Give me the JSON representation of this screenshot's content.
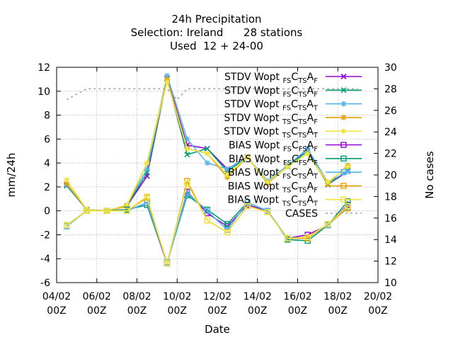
{
  "chart_data": {
    "type": "line",
    "title": [
      "24h Precipitation",
      "Selection: Ireland      28 stations",
      "Used  12 + 24-00"
    ],
    "xlabel": "Date",
    "ylabel": "mm/24h",
    "y2label": "No cases",
    "xlim": [
      0,
      16
    ],
    "ylim": [
      -6,
      12
    ],
    "y2lim": [
      10,
      30
    ],
    "xticks": [
      {
        "value": 0,
        "line1": "04/02",
        "line2": "00Z"
      },
      {
        "value": 2,
        "line1": "06/02",
        "line2": "00Z"
      },
      {
        "value": 4,
        "line1": "08/02",
        "line2": "00Z"
      },
      {
        "value": 6,
        "line1": "10/02",
        "line2": "00Z"
      },
      {
        "value": 8,
        "line1": "12/02",
        "line2": "00Z"
      },
      {
        "value": 10,
        "line1": "14/02",
        "line2": "00Z"
      },
      {
        "value": 12,
        "line1": "16/02",
        "line2": "00Z"
      },
      {
        "value": 14,
        "line1": "18/02",
        "line2": "00Z"
      },
      {
        "value": 16,
        "line1": "20/02",
        "line2": "00Z"
      }
    ],
    "yticks": [
      -6,
      -4,
      -2,
      0,
      2,
      4,
      6,
      8,
      10,
      12
    ],
    "y2ticks": [
      10,
      12,
      14,
      16,
      18,
      20,
      22,
      24,
      26,
      28,
      30
    ],
    "grid": true,
    "legend_position": "top-right",
    "x": [
      0.5,
      1.5,
      2.5,
      3.5,
      4.5,
      5.5,
      6.5,
      7.5,
      8.5,
      9.5,
      10.5,
      11.5,
      12.5,
      13.5,
      14.5
    ],
    "series": [
      {
        "label": {
          "pre": "STDV Wopt",
          "s1": "FS",
          "m": "C",
          "s2": "TS",
          "e": "A",
          "s3": "F"
        },
        "color": "#9400d3",
        "marker": "x",
        "axis": "y1",
        "values": [
          2.2,
          0.1,
          0.0,
          0.4,
          2.9,
          11.1,
          5.5,
          5.2,
          3.5,
          4.5,
          2.4,
          3.7,
          5.2,
          2.2,
          3.3
        ]
      },
      {
        "label": {
          "pre": "STDV Wopt",
          "s1": "FS",
          "m": "C",
          "s2": "TS",
          "e": "A",
          "s3": "F"
        },
        "color": "#009e73",
        "marker": "x",
        "axis": "y1",
        "values": [
          2.1,
          0.1,
          0.0,
          0.4,
          3.2,
          11.0,
          4.7,
          5.2,
          3.3,
          4.5,
          2.4,
          3.7,
          5.0,
          2.2,
          3.4
        ]
      },
      {
        "label": {
          "pre": "STDV Wopt",
          "s1": "FS",
          "m": "C",
          "s2": "TS",
          "e": "A",
          "s3": "T"
        },
        "color": "#56b4e9",
        "marker": "star",
        "axis": "y1",
        "values": [
          2.2,
          0.1,
          0.0,
          0.5,
          3.5,
          11.3,
          6.0,
          4.0,
          3.5,
          4.5,
          2.5,
          3.8,
          5.2,
          2.4,
          3.3
        ]
      },
      {
        "label": {
          "pre": "STDV Wopt",
          "s1": "TS",
          "m": "C",
          "s2": "TS",
          "e": "A",
          "s3": "F"
        },
        "color": "#e69f00",
        "marker": "star",
        "axis": "y1",
        "values": [
          2.3,
          0.1,
          0.0,
          0.4,
          4.0,
          11.0,
          5.2,
          4.8,
          2.8,
          4.5,
          2.3,
          3.7,
          4.8,
          2.3,
          3.8
        ]
      },
      {
        "label": {
          "pre": "STDV Wopt",
          "s1": "TS",
          "m": "C",
          "s2": "TS",
          "e": "A",
          "s3": "T"
        },
        "color": "#f0e442",
        "marker": "star",
        "axis": "y1",
        "values": [
          2.6,
          0.1,
          0.0,
          0.5,
          4.0,
          10.8,
          5.2,
          4.8,
          3.0,
          4.5,
          2.4,
          3.7,
          4.8,
          2.4,
          3.7
        ]
      },
      {
        "label": {
          "pre": "BIAS Wopt",
          "s1": "FS",
          "m": "C",
          "s2": "FS",
          "e": "A",
          "s3": "F"
        },
        "color": "#9400d3",
        "marker": "square",
        "axis": "y1",
        "values": [
          -1.2,
          0.0,
          0.0,
          0.1,
          0.5,
          -4.4,
          1.6,
          -0.2,
          -1.3,
          0.5,
          0.0,
          -2.3,
          -2.0,
          -1.2,
          0.5
        ]
      },
      {
        "label": {
          "pre": "BIAS Wopt",
          "s1": "FS",
          "m": "C",
          "s2": "FS",
          "e": "A",
          "s3": "F"
        },
        "color": "#009e73",
        "marker": "square",
        "axis": "y1",
        "values": [
          -1.2,
          0.0,
          0.0,
          0.1,
          0.5,
          -4.3,
          1.3,
          0.1,
          -1.1,
          0.7,
          0.0,
          -2.4,
          -2.5,
          -1.2,
          0.8
        ]
      },
      {
        "label": {
          "pre": "BIAS Wopt",
          "s1": "FS",
          "m": "C",
          "s2": "TS",
          "e": "A",
          "s3": "T"
        },
        "color": "#56b4e9",
        "marker": "square",
        "axis": "y1",
        "values": [
          -1.3,
          0.0,
          0.0,
          0.0,
          0.7,
          -4.3,
          1.5,
          0.0,
          -1.6,
          0.7,
          0.0,
          -2.3,
          -2.2,
          -1.2,
          0.3
        ]
      },
      {
        "label": {
          "pre": "BIAS Wopt",
          "s1": "TS",
          "m": "C",
          "s2": "TS",
          "e": "A",
          "s3": "F"
        },
        "color": "#e69f00",
        "marker": "square",
        "axis": "y1",
        "values": [
          -1.2,
          0.0,
          0.0,
          0.0,
          1.1,
          -4.4,
          2.5,
          -0.8,
          -1.8,
          0.4,
          -0.1,
          -2.3,
          -2.3,
          -1.1,
          0.2
        ]
      },
      {
        "label": {
          "pre": "BIAS Wopt",
          "s1": "TS",
          "m": "C",
          "s2": "TS",
          "e": "A",
          "s3": "T"
        },
        "color": "#f0e442",
        "marker": "square",
        "axis": "y1",
        "values": [
          -1.2,
          0.0,
          0.0,
          0.0,
          1.2,
          -4.4,
          2.3,
          -0.8,
          -1.8,
          0.4,
          -0.1,
          -2.3,
          -2.2,
          -1.1,
          0.4
        ]
      },
      {
        "label": {
          "pre": "CASES",
          "s1": "",
          "m": "",
          "s2": "",
          "e": "",
          "s3": ""
        },
        "color": "#a0a0a0",
        "marker": "none",
        "dashed": true,
        "axis": "y2",
        "values": [
          27.0,
          28.0,
          28.0,
          28.0,
          28.0,
          28.0,
          27.0,
          28.0,
          28.0,
          28.0,
          28.0,
          28.0,
          28.0,
          28.0,
          28.0
        ],
        "x": [
          0.5,
          1.5,
          2.5,
          3.5,
          4.5,
          5.5,
          6.0,
          6.5,
          7.5,
          8.5,
          9.5,
          10.5,
          12.5,
          14.5,
          15.0
        ]
      }
    ]
  }
}
